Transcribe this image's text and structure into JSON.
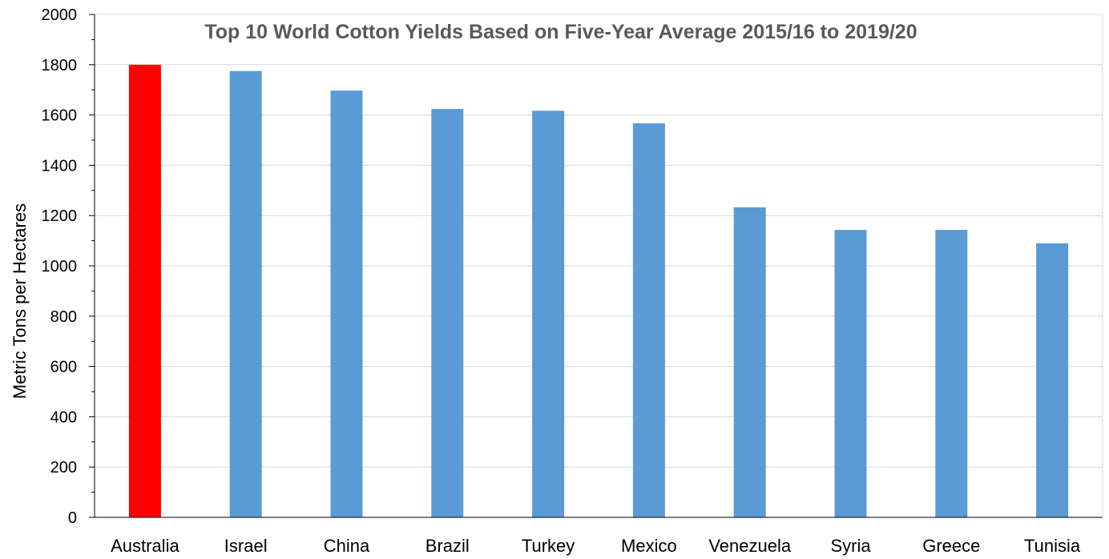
{
  "chart_data": {
    "type": "bar",
    "title": "Top 10 World Cotton Yields Based on Five-Year Average 2015/16 to 2019/20",
    "xlabel": "",
    "ylabel": "Metric Tons per Hectares",
    "categories": [
      "Australia",
      "Israel",
      "China",
      "Brazil",
      "Turkey",
      "Mexico",
      "Venezuela",
      "Syria",
      "Greece",
      "Tunisia"
    ],
    "values": [
      1800,
      1775,
      1697,
      1624,
      1617,
      1567,
      1233,
      1143,
      1143,
      1090
    ],
    "ylim": [
      0,
      2000
    ],
    "yticks": [
      0,
      200,
      400,
      600,
      800,
      1000,
      1200,
      1400,
      1600,
      1800,
      2000
    ],
    "grid": true,
    "legend": "none",
    "colors": {
      "default_bar": "#5B9BD5",
      "highlight_bar": "#FF0000",
      "gridline": "#D9D9D9",
      "axis": "#000000",
      "title": "#595959"
    },
    "highlight_category": "Australia"
  }
}
